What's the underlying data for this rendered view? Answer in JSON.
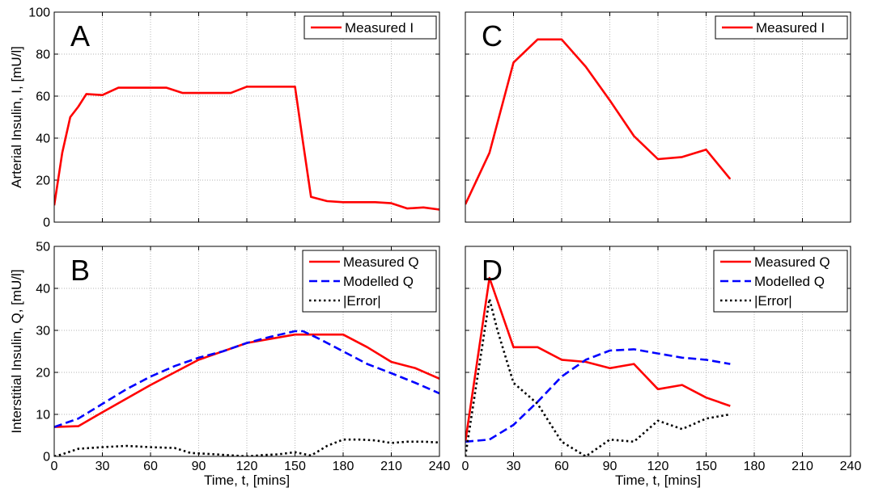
{
  "chart_data": [
    {
      "type": "line",
      "panel_label": "A",
      "xlabel": "",
      "ylabel": "Arterial Insulin, I, [mU/l]",
      "xlim": [
        0,
        240
      ],
      "ylim": [
        0,
        100
      ],
      "xticks": [
        0,
        30,
        60,
        90,
        120,
        150,
        180,
        210,
        240
      ],
      "yticks": [
        0,
        20,
        40,
        60,
        80,
        100
      ],
      "show_xtick_labels": false,
      "show_ytick_labels": true,
      "grid": true,
      "legend_position": "top-right",
      "series": [
        {
          "name": "Measured I",
          "color": "#ff0000",
          "dash": "solid",
          "x": [
            0,
            5,
            10,
            15,
            20,
            30,
            40,
            50,
            60,
            70,
            80,
            90,
            100,
            110,
            120,
            130,
            140,
            150,
            155,
            160,
            170,
            180,
            190,
            200,
            210,
            220,
            230,
            240
          ],
          "y": [
            8,
            33,
            50,
            55,
            61,
            60.5,
            64,
            64,
            64,
            64,
            61.5,
            61.5,
            61.5,
            61.5,
            64.5,
            64.5,
            64.5,
            64.5,
            38,
            12,
            10,
            9.5,
            9.5,
            9.5,
            9,
            6.5,
            7,
            6
          ]
        }
      ]
    },
    {
      "type": "line",
      "panel_label": "B",
      "xlabel": "Time, t, [mins]",
      "ylabel": "Interstitial Insulin, Q, [mU/l]",
      "xlim": [
        0,
        240
      ],
      "ylim": [
        0,
        50
      ],
      "xticks": [
        0,
        30,
        60,
        90,
        120,
        150,
        180,
        210,
        240
      ],
      "yticks": [
        0,
        10,
        20,
        30,
        40,
        50
      ],
      "show_xtick_labels": true,
      "show_ytick_labels": true,
      "grid": true,
      "legend_position": "top-right",
      "series": [
        {
          "name": "Measured Q",
          "color": "#ff0000",
          "dash": "solid",
          "x": [
            0,
            15,
            30,
            60,
            90,
            120,
            150,
            165,
            180,
            195,
            210,
            225,
            240
          ],
          "y": [
            7,
            7.2,
            10.5,
            17,
            23,
            27,
            29,
            29,
            29,
            26,
            22.5,
            21,
            18.5
          ]
        },
        {
          "name": "Modelled Q",
          "color": "#0000ff",
          "dash": "dashed",
          "x": [
            0,
            15,
            30,
            45,
            60,
            75,
            90,
            105,
            120,
            135,
            150,
            155,
            165,
            180,
            195,
            210,
            225,
            240
          ],
          "y": [
            7,
            9,
            12.5,
            16,
            19,
            21.5,
            23.5,
            25,
            27,
            28.5,
            29.8,
            29.8,
            28,
            25,
            22,
            19.8,
            17.5,
            15
          ]
        },
        {
          "name": "|Error|",
          "color": "#000000",
          "dash": "dotted",
          "x": [
            0,
            5,
            15,
            30,
            45,
            60,
            75,
            85,
            100,
            120,
            130,
            140,
            150,
            160,
            170,
            180,
            190,
            200,
            210,
            220,
            230,
            240
          ],
          "y": [
            0,
            0.5,
            1.8,
            2.2,
            2.5,
            2.2,
            2,
            0.8,
            0.5,
            0,
            0.3,
            0.5,
            1,
            0.2,
            2.5,
            4,
            4,
            3.8,
            3.2,
            3.5,
            3.5,
            3.3
          ]
        }
      ]
    },
    {
      "type": "line",
      "panel_label": "C",
      "xlabel": "",
      "ylabel": "",
      "xlim": [
        0,
        240
      ],
      "ylim": [
        0,
        100
      ],
      "xticks": [
        0,
        30,
        60,
        90,
        120,
        150,
        180,
        210,
        240
      ],
      "yticks": [
        0,
        20,
        40,
        60,
        80,
        100
      ],
      "show_xtick_labels": false,
      "show_ytick_labels": false,
      "grid": true,
      "legend_position": "top-right",
      "series": [
        {
          "name": "Measured I",
          "color": "#ff0000",
          "dash": "solid",
          "x": [
            0,
            15,
            30,
            45,
            60,
            75,
            90,
            105,
            120,
            135,
            150,
            165
          ],
          "y": [
            8.5,
            33,
            76,
            87,
            87,
            74,
            58,
            41,
            30,
            31,
            34.5,
            20.5
          ]
        }
      ]
    },
    {
      "type": "line",
      "panel_label": "D",
      "xlabel": "Time, t, [mins]",
      "ylabel": "",
      "xlim": [
        0,
        240
      ],
      "ylim": [
        0,
        50
      ],
      "xticks": [
        0,
        30,
        60,
        90,
        120,
        150,
        180,
        210,
        240
      ],
      "yticks": [
        0,
        10,
        20,
        30,
        40,
        50
      ],
      "show_xtick_labels": true,
      "show_ytick_labels": false,
      "grid": true,
      "legend_position": "top-right",
      "series": [
        {
          "name": "Measured Q",
          "color": "#ff0000",
          "dash": "solid",
          "x": [
            0,
            15,
            30,
            45,
            60,
            75,
            90,
            105,
            120,
            135,
            150,
            165
          ],
          "y": [
            3.5,
            42.5,
            26,
            26,
            23,
            22.5,
            21,
            22,
            16,
            17,
            14,
            12
          ]
        },
        {
          "name": "Modelled Q",
          "color": "#0000ff",
          "dash": "dashed",
          "x": [
            0,
            15,
            30,
            45,
            60,
            75,
            90,
            105,
            120,
            135,
            150,
            165
          ],
          "y": [
            3.5,
            4,
            7.5,
            13,
            19,
            23,
            25.2,
            25.5,
            24.5,
            23.5,
            23,
            22
          ]
        },
        {
          "name": "|Error|",
          "color": "#000000",
          "dash": "dotted",
          "x": [
            0,
            15,
            20,
            30,
            45,
            60,
            75,
            90,
            105,
            120,
            135,
            150,
            165
          ],
          "y": [
            0,
            37.5,
            30,
            17.5,
            12.5,
            3.5,
            0,
            4,
            3.5,
            8.5,
            6.5,
            9,
            10
          ]
        }
      ]
    }
  ]
}
